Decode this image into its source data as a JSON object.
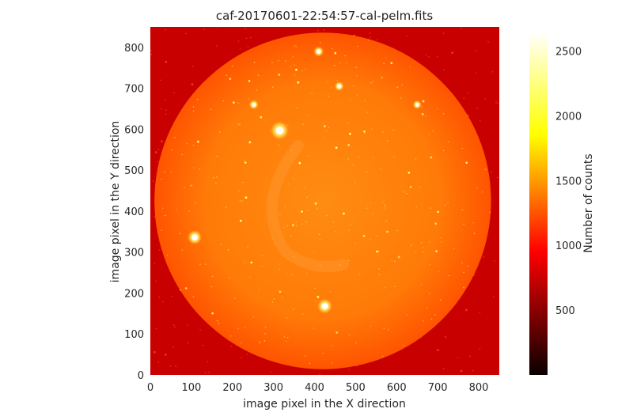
{
  "title": "caf-20170601-22:54:57-cal-pelm.fits",
  "image": {
    "xlabel": "image pixel in the X direction",
    "ylabel": "image pixel in the Y direction",
    "x_ticks": [
      0,
      100,
      200,
      300,
      400,
      500,
      600,
      700,
      800
    ],
    "y_ticks": [
      0,
      100,
      200,
      300,
      400,
      500,
      600,
      700,
      800
    ],
    "xlim": [
      0,
      850
    ],
    "ylim": [
      0,
      850
    ],
    "disk": {
      "center_x": 420,
      "center_y": 425,
      "radius": 410
    },
    "bright_stars": [
      {
        "x": 315,
        "y": 597,
        "strength": 1.0
      },
      {
        "x": 108,
        "y": 336,
        "strength": 0.7
      },
      {
        "x": 425,
        "y": 168,
        "strength": 0.75
      },
      {
        "x": 410,
        "y": 790,
        "strength": 0.4
      },
      {
        "x": 460,
        "y": 705,
        "strength": 0.35
      },
      {
        "x": 252,
        "y": 660,
        "strength": 0.35
      },
      {
        "x": 650,
        "y": 660,
        "strength": 0.3
      }
    ],
    "colors": {
      "background": "#c80000",
      "disk_edge": "#ff5a00",
      "disk_center": "#ff8a10",
      "star": "#ffff80"
    }
  },
  "colorbar": {
    "label": "Number of counts",
    "ticks": [
      500,
      1000,
      1500,
      2000,
      2500
    ],
    "range": [
      0,
      2650
    ],
    "colormap": "hot"
  }
}
